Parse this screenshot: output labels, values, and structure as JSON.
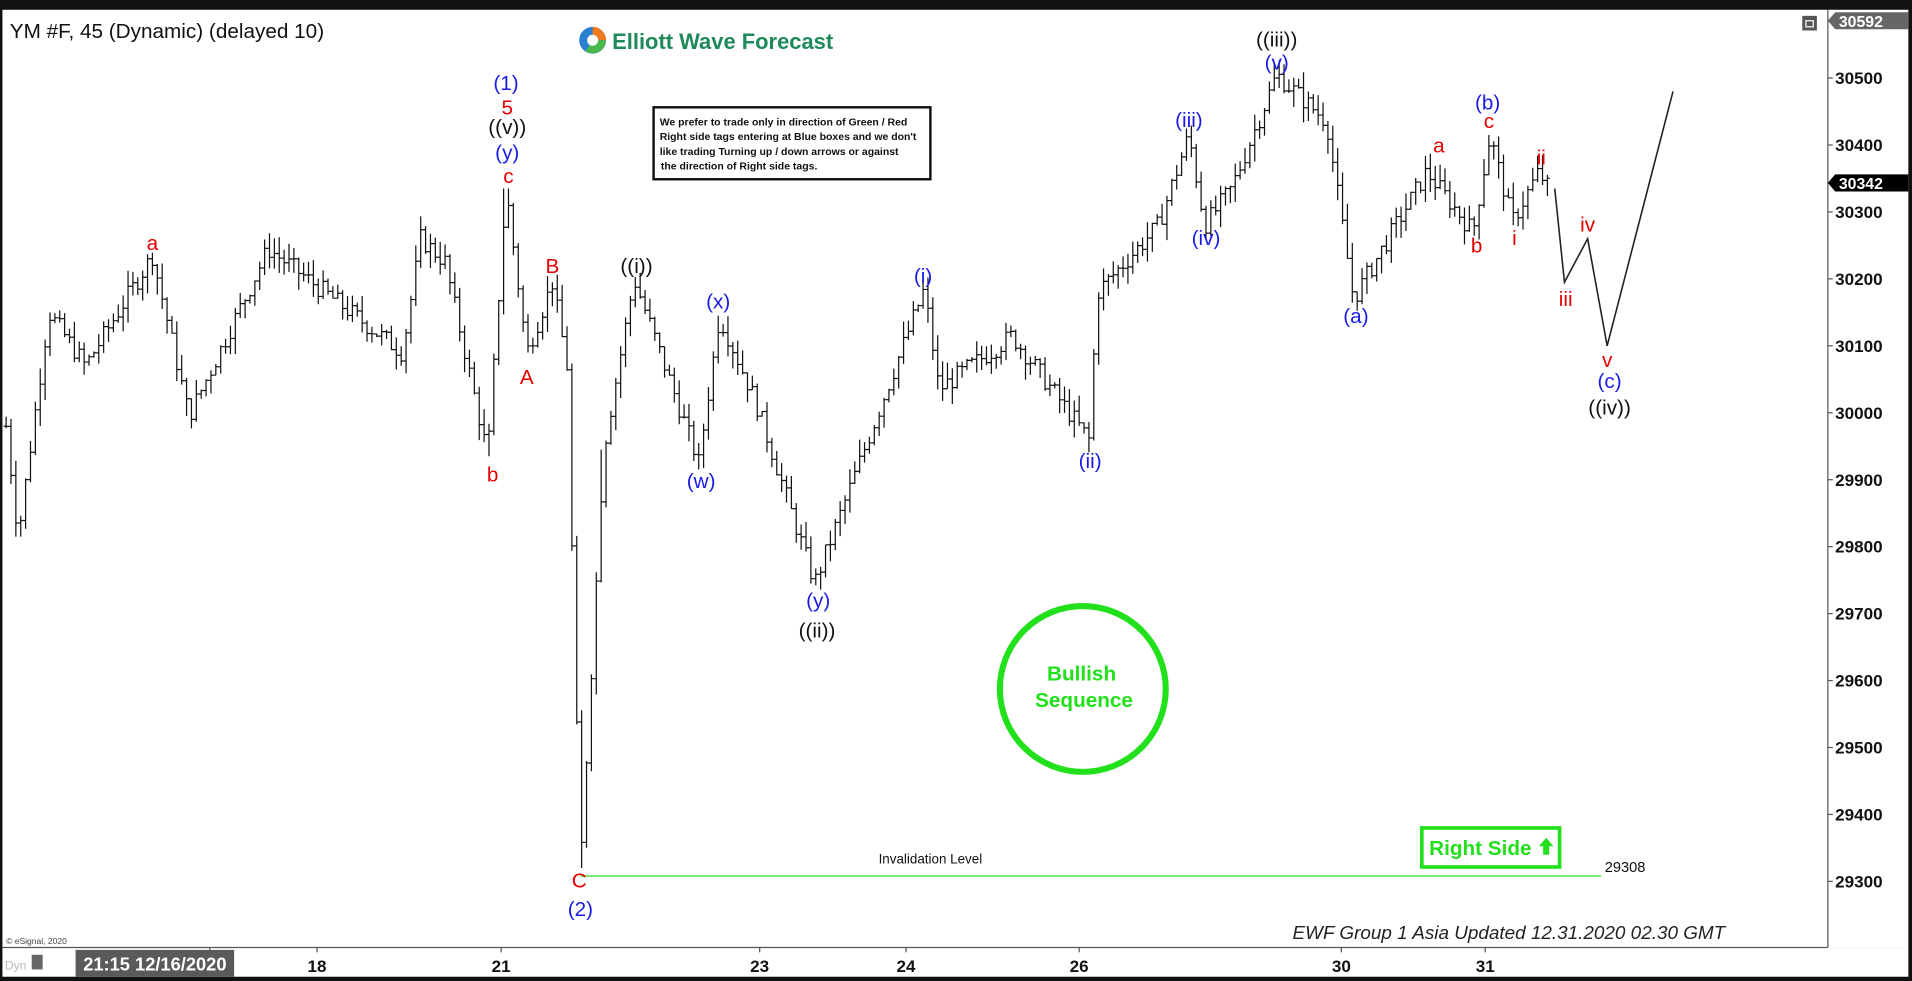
{
  "header": {
    "title": "YM #F, 45 (Dynamic) (delayed 10)",
    "logo_text": "Elliott Wave Forecast"
  },
  "notice": {
    "lines": [
      "We prefer to trade only in direction of Green / Red",
      "Right side tags entering at Blue boxes and we don't",
      "like trading Turning up / down arrows or against",
      "the direction of Right side tags."
    ]
  },
  "badge": {
    "line1": "Bullish",
    "line2": "Sequence",
    "color": "#22e01b"
  },
  "right_side": {
    "label": "Right Side",
    "icon": "arrow-up-icon",
    "color": "#22e01b"
  },
  "invalidation": {
    "label": "Invalidation Level",
    "value": "29308",
    "price": 29308,
    "color": "#22e01b"
  },
  "footer": {
    "updated": "EWF Group 1 Asia Updated 12.31.2020 02.30 GMT",
    "copyright": "© eSignal, 2020",
    "dyn": "Dyn"
  },
  "chart_data": {
    "type": "ohlc",
    "symbol": "YM #F",
    "interval": "45",
    "ylim": [
      29220,
      30600
    ],
    "y_ticks": [
      "30500",
      "30400",
      "30300",
      "30200",
      "30100",
      "30000",
      "29900",
      "29800",
      "29700",
      "29600",
      "29500",
      "29400",
      "29300"
    ],
    "x_ticks": [
      "21:15 12/16/2020",
      "18",
      "21",
      "23",
      "24",
      "26",
      "30",
      "31"
    ],
    "price_markers": {
      "high": "30592",
      "last": "30342"
    },
    "swing_prices": [
      29980,
      29815,
      30150,
      30070,
      30235,
      29995,
      30245,
      30090,
      30260,
      30225,
      29935,
      30335,
      30090,
      30195,
      30070,
      29320,
      29945,
      30200,
      29925,
      30145,
      30015,
      29745,
      30000,
      30185,
      30035,
      30115,
      29960,
      30180,
      30280,
      30415,
      30280,
      30335,
      30505,
      30435,
      30170,
      30360,
      30270,
      30415,
      30285,
      30360,
      30335
    ],
    "projection_prices": [
      30335,
      30195,
      30260,
      30100,
      30480
    ],
    "wave_labels": [
      {
        "text": "(1)",
        "color": "blue"
      },
      {
        "text": "5",
        "color": "red"
      },
      {
        "text": "((v))",
        "color": "black"
      },
      {
        "text": "(y)",
        "color": "blue"
      },
      {
        "text": "c",
        "color": "red"
      },
      {
        "text": "a",
        "color": "red"
      },
      {
        "text": "b",
        "color": "red"
      },
      {
        "text": "A",
        "color": "red"
      },
      {
        "text": "B",
        "color": "red"
      },
      {
        "text": "C",
        "color": "red"
      },
      {
        "text": "(2)",
        "color": "blue"
      },
      {
        "text": "((i))",
        "color": "black"
      },
      {
        "text": "(x)",
        "color": "blue"
      },
      {
        "text": "(w)",
        "color": "blue"
      },
      {
        "text": "(y)",
        "color": "blue"
      },
      {
        "text": "((ii))",
        "color": "black"
      },
      {
        "text": "(i)",
        "color": "blue"
      },
      {
        "text": "(ii)",
        "color": "blue"
      },
      {
        "text": "(iii)",
        "color": "blue"
      },
      {
        "text": "(iv)",
        "color": "blue"
      },
      {
        "text": "((iii))",
        "color": "black"
      },
      {
        "text": "(v)",
        "color": "blue"
      },
      {
        "text": "(a)",
        "color": "blue"
      },
      {
        "text": "a",
        "color": "red"
      },
      {
        "text": "b",
        "color": "red"
      },
      {
        "text": "(b)",
        "color": "blue"
      },
      {
        "text": "c",
        "color": "red"
      },
      {
        "text": "i",
        "color": "red"
      },
      {
        "text": "ii",
        "color": "red"
      },
      {
        "text": "iii",
        "color": "red"
      },
      {
        "text": "iv",
        "color": "red"
      },
      {
        "text": "v",
        "color": "red"
      },
      {
        "text": "(c)",
        "color": "blue"
      },
      {
        "text": "((iv))",
        "color": "black"
      }
    ]
  }
}
